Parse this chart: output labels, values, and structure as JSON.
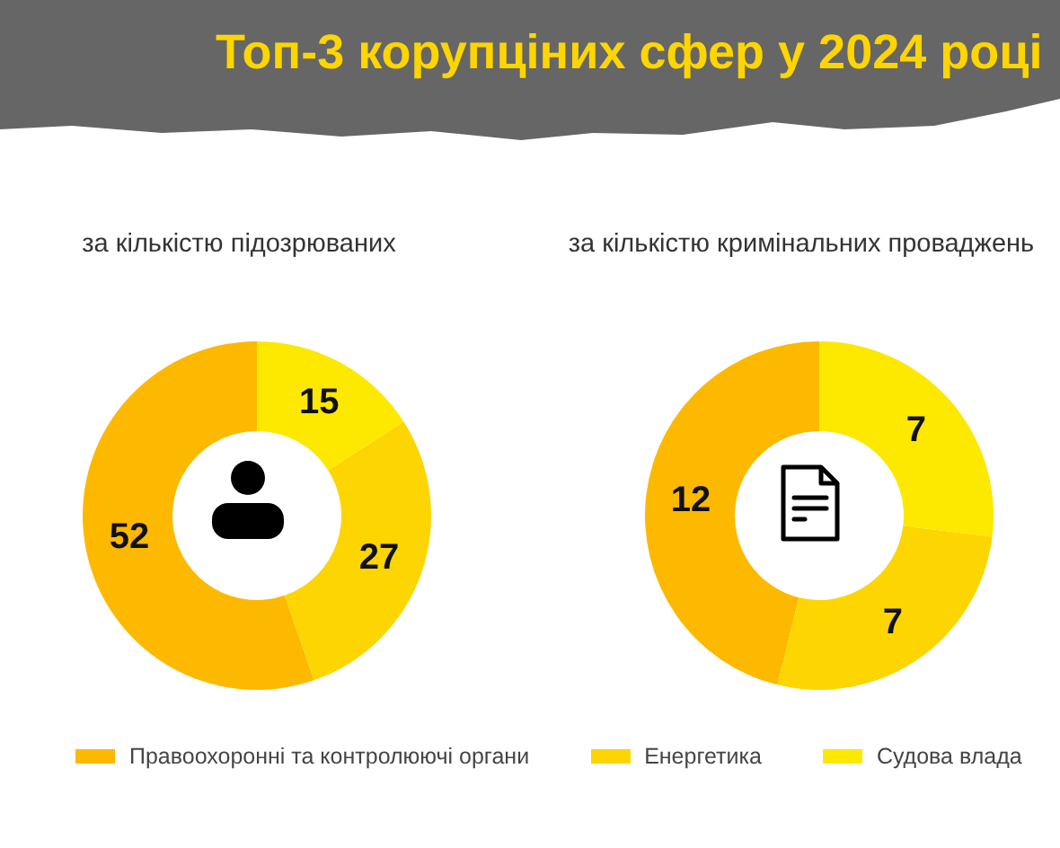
{
  "chart_data": [
    {
      "type": "donut",
      "title": "Топ-3 корупціних сфер у 2024 році",
      "subtitle": "за кількістю підозрюваних",
      "categories": [
        "Правоохоронні та контролюючі органи",
        "Енергетика",
        "Судова влада"
      ],
      "values": [
        52,
        27,
        15
      ],
      "colors": [
        "#fdb900",
        "#fdd500",
        "#fde800"
      ],
      "data_labels": true,
      "legend": "bottom"
    },
    {
      "type": "donut",
      "subtitle": "за кількістю кримінальних проваджень",
      "values": [
        12,
        7,
        7
      ],
      "colors": [
        "#fdb900",
        "#fdd500",
        "#fde800"
      ],
      "data_labels": true
    }
  ]
}
